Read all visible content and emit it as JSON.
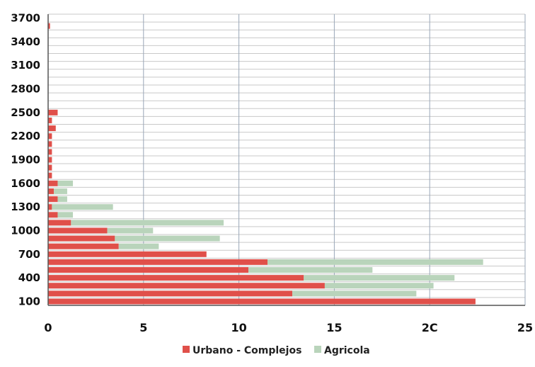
{
  "chart_data": {
    "type": "bar",
    "orientation": "horizontal",
    "stacked": true,
    "title": "",
    "xlabel": "",
    "ylabel": "",
    "xlim": [
      0,
      25
    ],
    "x_ticks": [
      "0",
      "5",
      "10",
      "15",
      "2C",
      "25"
    ],
    "y_ticks": [
      "100",
      "400",
      "700",
      "1000",
      "1300",
      "1600",
      "1900",
      "2200",
      "2500",
      "2800",
      "3100",
      "3400",
      "3700"
    ],
    "grid": true,
    "legend_position": "bottom",
    "categories": [
      100,
      200,
      300,
      400,
      500,
      600,
      700,
      800,
      900,
      1000,
      1100,
      1200,
      1300,
      1400,
      1500,
      1600,
      1700,
      1800,
      1900,
      2000,
      2100,
      2200,
      2300,
      2400,
      2500,
      2600,
      2700,
      2800,
      2900,
      3000,
      3100,
      3200,
      3300,
      3400,
      3500,
      3600,
      3700
    ],
    "series": [
      {
        "name": "Urbano - Complejos",
        "color": "#e0504a",
        "values": [
          22.4,
          12.8,
          14.5,
          13.4,
          10.5,
          11.5,
          8.3,
          3.7,
          3.5,
          3.1,
          1.2,
          0.5,
          0.2,
          0.5,
          0.3,
          0.5,
          0.2,
          0.2,
          0.2,
          0.2,
          0.2,
          0.2,
          0.4,
          0.2,
          0.5,
          0,
          0,
          0,
          0,
          0,
          0,
          0,
          0,
          0,
          0,
          0.1,
          0
        ]
      },
      {
        "name": "Agricola",
        "color": "#b9d4bb",
        "values": [
          0,
          6.5,
          5.7,
          7.9,
          6.5,
          11.3,
          0,
          2.1,
          5.5,
          2.4,
          8.0,
          0.8,
          3.2,
          0.5,
          0.7,
          0.8,
          0,
          0,
          0,
          0,
          0,
          0,
          0,
          0,
          0,
          0,
          0,
          0,
          0,
          0,
          0,
          0,
          0,
          0,
          0,
          0,
          0
        ]
      }
    ]
  }
}
